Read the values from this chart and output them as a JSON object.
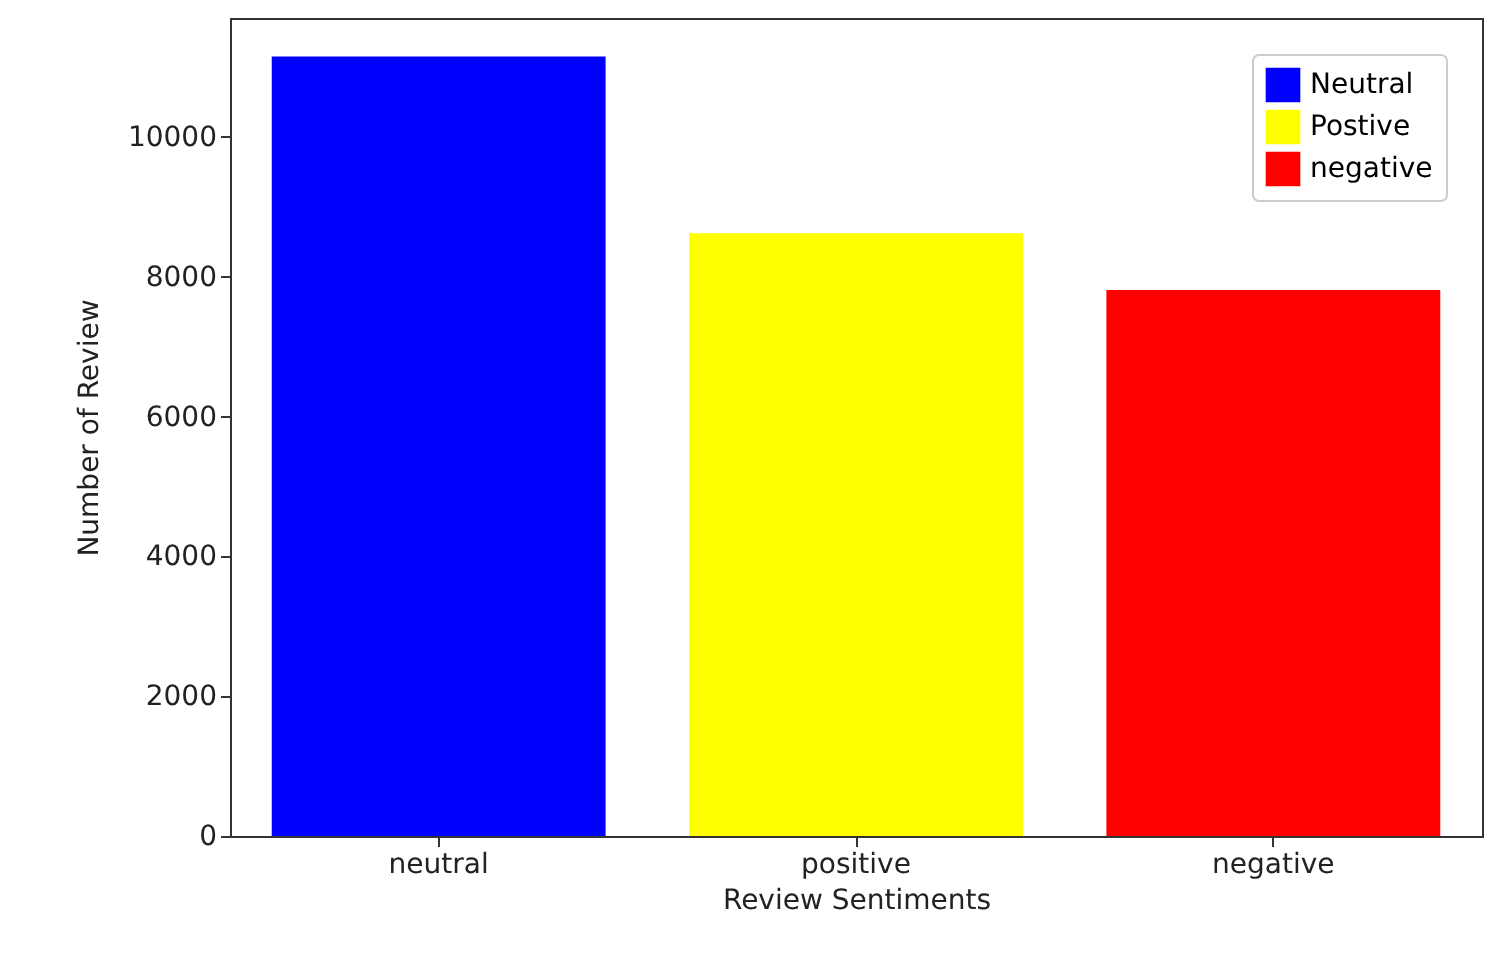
{
  "chart_data": {
    "type": "bar",
    "xlabel": "Review Sentiments",
    "ylabel": "Number of Review",
    "categories": [
      "neutral",
      "positive",
      "negative"
    ],
    "series": [
      {
        "name": "Neutral",
        "color": "#0000ff",
        "values": [
          11150,
          null,
          null
        ]
      },
      {
        "name": "Postive",
        "color": "#ffff00",
        "values": [
          null,
          8620,
          null
        ]
      },
      {
        "name": "negative",
        "color": "#ff0000",
        "values": [
          null,
          null,
          7810
        ]
      }
    ],
    "ylim": [
      0,
      11700
    ],
    "yticks": [
      0,
      2000,
      4000,
      6000,
      8000,
      10000
    ],
    "grid": false,
    "legend": "top right"
  }
}
